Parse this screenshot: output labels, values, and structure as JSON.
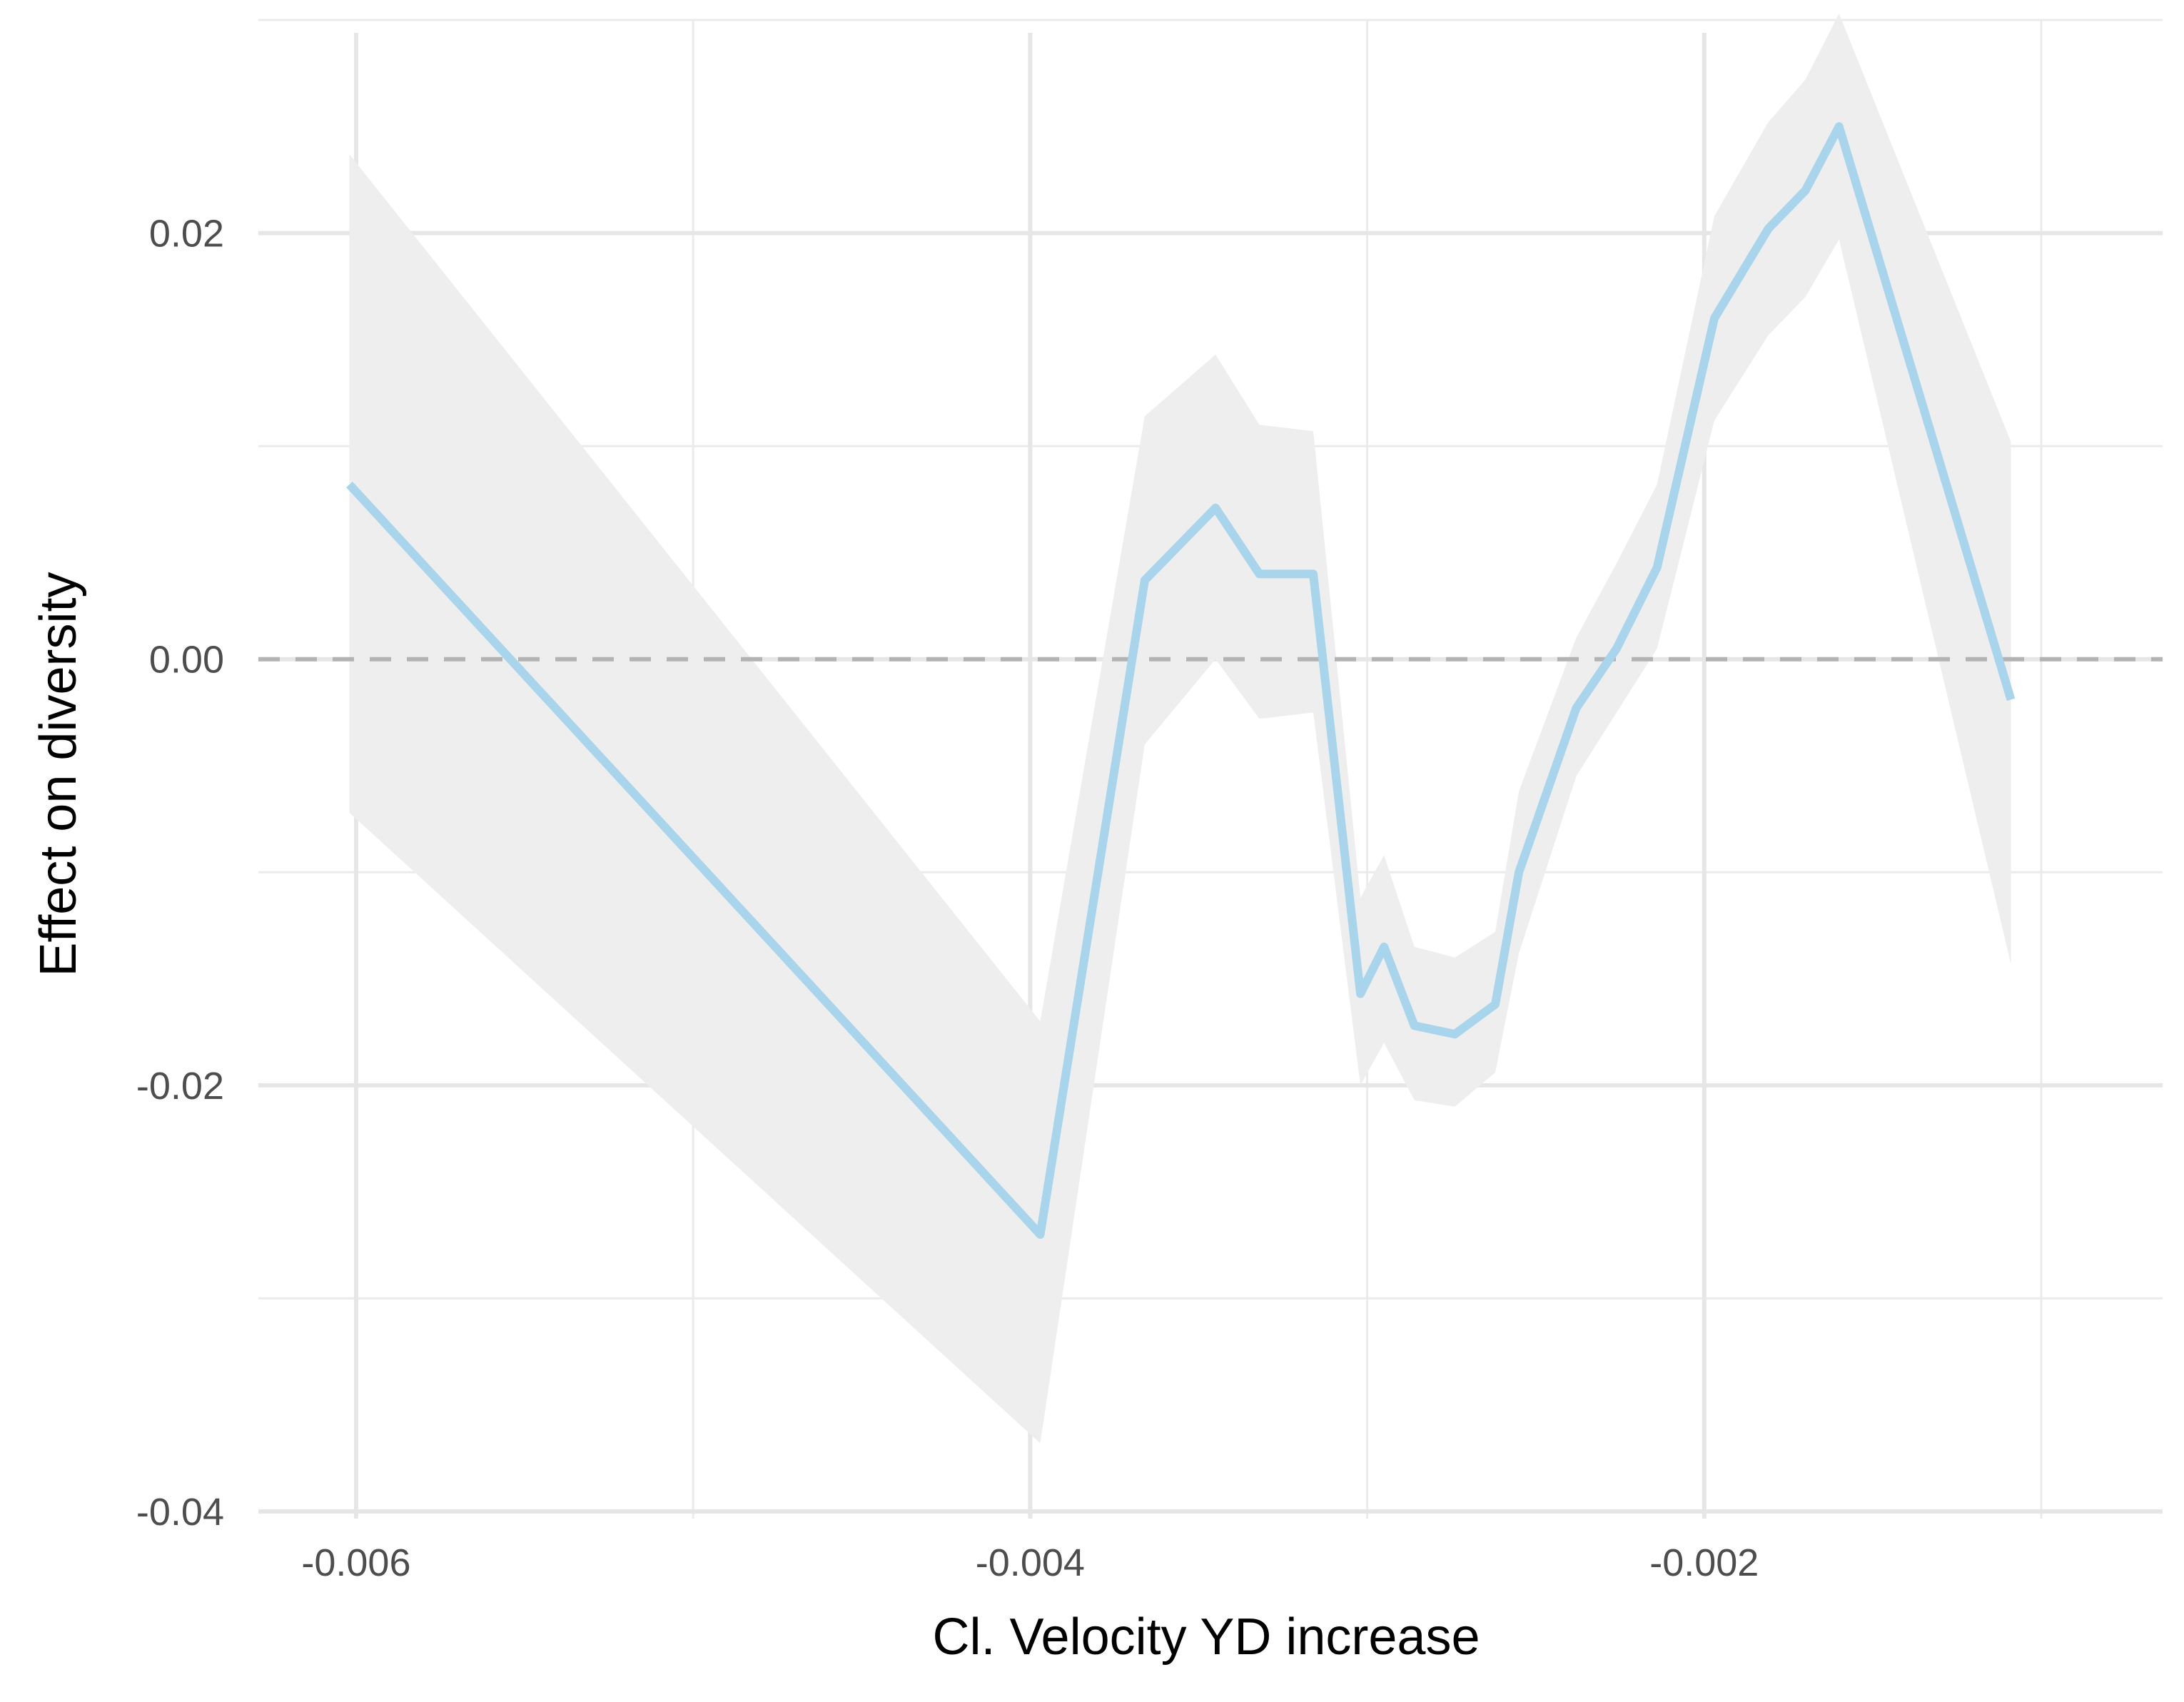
{
  "chart_data": {
    "type": "line",
    "title": "",
    "xlabel": "Cl. Velocity YD increase",
    "ylabel": "Effect on diversity",
    "xlim": [
      -0.00629,
      -0.00064
    ],
    "ylim": [
      -0.04,
      0.03
    ],
    "grid": true,
    "legend": "none",
    "x_ticks": [
      {
        "value": -0.006,
        "label": "-0.006"
      },
      {
        "value": -0.004,
        "label": "-0.004"
      },
      {
        "value": -0.002,
        "label": "-0.002"
      }
    ],
    "x_minor_ticks": [
      -0.005,
      -0.003,
      -0.001
    ],
    "y_ticks": [
      {
        "value": 0.02,
        "label": "0.02"
      },
      {
        "value": 0.0,
        "label": "0.00"
      },
      {
        "value": -0.02,
        "label": "-0.02"
      },
      {
        "value": -0.04,
        "label": "-0.04"
      }
    ],
    "y_minor_ticks": [
      0.03,
      0.01,
      -0.01,
      -0.03
    ],
    "reference_line": {
      "y": 0.0,
      "style": "dashed",
      "color": "#b3b3b3"
    },
    "series": [
      {
        "line_color": "#a8d4ec",
        "band_color": "#eeeeee",
        "x": [
          -0.00602,
          -0.00397,
          -0.00366,
          -0.00345,
          -0.00332,
          -0.00316,
          -0.00302,
          -0.00295,
          -0.00286,
          -0.00274,
          -0.00262,
          -0.00255,
          -0.00238,
          -0.00226,
          -0.00214,
          -0.00197,
          -0.00181,
          -0.0017,
          -0.0016,
          -0.00109
        ],
        "y": [
          0.0082,
          -0.027,
          0.0037,
          0.0071,
          0.004,
          0.004,
          -0.0157,
          -0.0135,
          -0.0172,
          -0.0176,
          -0.0162,
          -0.01,
          -0.0023,
          0.0005,
          0.0043,
          0.016,
          0.0202,
          0.022,
          0.025,
          -0.0019
        ],
        "lower": [
          -0.0072,
          -0.0368,
          -0.004,
          0.0,
          -0.0028,
          -0.0025,
          -0.02,
          -0.018,
          -0.0207,
          -0.021,
          -0.0194,
          -0.0138,
          -0.0055,
          -0.0025,
          0.0005,
          0.0112,
          0.0152,
          0.017,
          0.0197,
          -0.0143
        ],
        "upper": [
          0.0237,
          -0.017,
          0.0114,
          0.0143,
          0.011,
          0.0107,
          -0.0112,
          -0.0092,
          -0.0135,
          -0.014,
          -0.0128,
          -0.0062,
          0.001,
          0.0045,
          0.0082,
          0.0208,
          0.0252,
          0.0272,
          0.0303,
          0.0102
        ]
      }
    ]
  }
}
